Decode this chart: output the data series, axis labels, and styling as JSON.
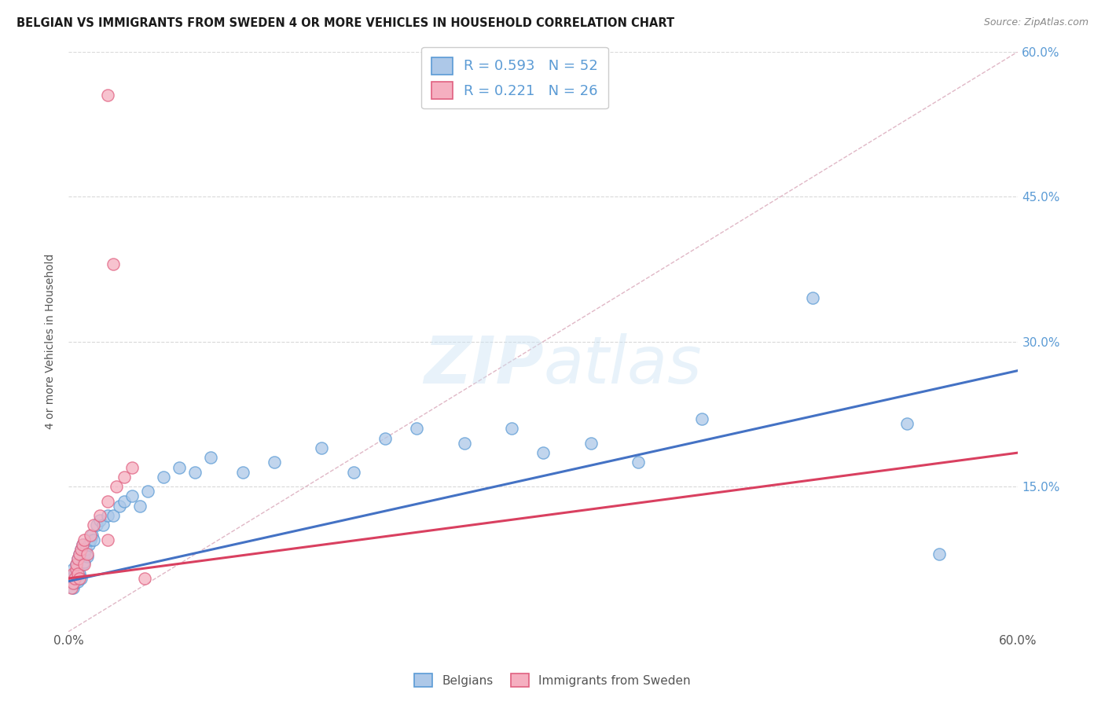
{
  "title": "BELGIAN VS IMMIGRANTS FROM SWEDEN 4 OR MORE VEHICLES IN HOUSEHOLD CORRELATION CHART",
  "source": "Source: ZipAtlas.com",
  "ylabel": "4 or more Vehicles in Household",
  "xlim": [
    0.0,
    0.6
  ],
  "ylim": [
    0.0,
    0.6
  ],
  "xtick_values": [
    0.0,
    0.1,
    0.2,
    0.3,
    0.4,
    0.5,
    0.6
  ],
  "xtick_labels": [
    "0.0%",
    "",
    "",
    "",
    "",
    "",
    "60.0%"
  ],
  "ytick_values": [
    0.15,
    0.3,
    0.45,
    0.6
  ],
  "legend_r1": "0.593",
  "legend_n1": "52",
  "legend_r2": "0.221",
  "legend_n2": "26",
  "color_belgian": "#adc8e8",
  "color_sweden": "#f5afc0",
  "color_blue": "#5b9bd5",
  "color_pink": "#e06080",
  "line_color_belgian": "#4472c4",
  "line_color_sweden": "#d94060",
  "diag_line_color": "#cccccc",
  "background_color": "#ffffff",
  "grid_color": "#d0d0d0",
  "belgian_x": [
    0.002,
    0.003,
    0.003,
    0.004,
    0.004,
    0.005,
    0.005,
    0.006,
    0.006,
    0.007,
    0.007,
    0.008,
    0.008,
    0.009,
    0.009,
    0.01,
    0.01,
    0.011,
    0.012,
    0.013,
    0.014,
    0.015,
    0.016,
    0.018,
    0.02,
    0.022,
    0.025,
    0.028,
    0.032,
    0.035,
    0.04,
    0.045,
    0.05,
    0.06,
    0.07,
    0.08,
    0.09,
    0.11,
    0.13,
    0.16,
    0.18,
    0.2,
    0.22,
    0.25,
    0.28,
    0.3,
    0.33,
    0.36,
    0.4,
    0.47,
    0.53,
    0.55
  ],
  "belgian_y": [
    0.055,
    0.045,
    0.065,
    0.05,
    0.06,
    0.058,
    0.07,
    0.052,
    0.075,
    0.06,
    0.08,
    0.055,
    0.085,
    0.09,
    0.07,
    0.072,
    0.08,
    0.085,
    0.078,
    0.09,
    0.095,
    0.1,
    0.095,
    0.11,
    0.115,
    0.11,
    0.12,
    0.12,
    0.13,
    0.135,
    0.14,
    0.13,
    0.145,
    0.16,
    0.17,
    0.165,
    0.18,
    0.165,
    0.175,
    0.19,
    0.165,
    0.2,
    0.21,
    0.195,
    0.21,
    0.185,
    0.195,
    0.175,
    0.22,
    0.345,
    0.215,
    0.08
  ],
  "sweden_x": [
    0.002,
    0.003,
    0.003,
    0.004,
    0.005,
    0.005,
    0.006,
    0.006,
    0.007,
    0.007,
    0.008,
    0.009,
    0.01,
    0.01,
    0.012,
    0.014,
    0.016,
    0.02,
    0.025,
    0.03,
    0.035,
    0.04,
    0.025,
    0.028,
    0.025,
    0.048
  ],
  "sweden_y": [
    0.045,
    0.05,
    0.06,
    0.055,
    0.065,
    0.07,
    0.075,
    0.06,
    0.08,
    0.055,
    0.085,
    0.09,
    0.095,
    0.07,
    0.08,
    0.1,
    0.11,
    0.12,
    0.135,
    0.15,
    0.16,
    0.17,
    0.555,
    0.38,
    0.095,
    0.055
  ],
  "blue_line_x0": 0.0,
  "blue_line_y0": 0.052,
  "blue_line_x1": 0.6,
  "blue_line_y1": 0.27,
  "pink_line_x0": 0.0,
  "pink_line_y0": 0.055,
  "pink_line_x1": 0.6,
  "pink_line_y1": 0.185
}
